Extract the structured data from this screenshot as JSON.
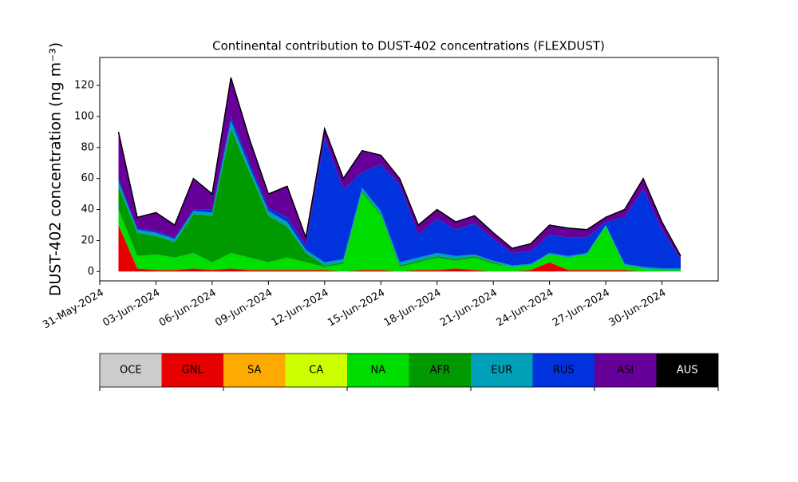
{
  "chart_data": {
    "type": "stacked_area",
    "title": "Continental contribution to DUST-402 concentrations (FLEXDUST)",
    "ylabel": "DUST-402 concentration (ng m⁻³)",
    "x": [
      "2024-06-01",
      "2024-06-02",
      "2024-06-03",
      "2024-06-04",
      "2024-06-05",
      "2024-06-06",
      "2024-06-07",
      "2024-06-08",
      "2024-06-09",
      "2024-06-10",
      "2024-06-11",
      "2024-06-12",
      "2024-06-13",
      "2024-06-14",
      "2024-06-15",
      "2024-06-16",
      "2024-06-17",
      "2024-06-18",
      "2024-06-19",
      "2024-06-20",
      "2024-06-21",
      "2024-06-22",
      "2024-06-23",
      "2024-06-24",
      "2024-06-25",
      "2024-06-26",
      "2024-06-27",
      "2024-06-28",
      "2024-06-29",
      "2024-06-30",
      "2024-07-01"
    ],
    "xlim": [
      "2024-05-31",
      "2024-07-03"
    ],
    "xticks": [
      {
        "value": "2024-05-31",
        "label": "31-May-2024"
      },
      {
        "value": "2024-06-03",
        "label": "03-Jun-2024"
      },
      {
        "value": "2024-06-06",
        "label": "06-Jun-2024"
      },
      {
        "value": "2024-06-09",
        "label": "09-Jun-2024"
      },
      {
        "value": "2024-06-12",
        "label": "12-Jun-2024"
      },
      {
        "value": "2024-06-15",
        "label": "15-Jun-2024"
      },
      {
        "value": "2024-06-18",
        "label": "18-Jun-2024"
      },
      {
        "value": "2024-06-21",
        "label": "21-Jun-2024"
      },
      {
        "value": "2024-06-24",
        "label": "24-Jun-2024"
      },
      {
        "value": "2024-06-27",
        "label": "27-Jun-2024"
      },
      {
        "value": "2024-06-30",
        "label": "30-Jun-2024"
      }
    ],
    "ylim": [
      -6,
      138
    ],
    "yticks": [
      0,
      20,
      40,
      60,
      80,
      100,
      120
    ],
    "series": [
      {
        "name": "OCE",
        "color": "#cccccc",
        "values": [
          0,
          0,
          0,
          0,
          0,
          0,
          0,
          0,
          0,
          0,
          0,
          0,
          0,
          0,
          0,
          0,
          0,
          0,
          0,
          0,
          0,
          0,
          0,
          0,
          0,
          0,
          0,
          0,
          0,
          0,
          0
        ]
      },
      {
        "name": "GNL",
        "color": "#e60000",
        "values": [
          30,
          2,
          1,
          1,
          2,
          1,
          2,
          1,
          1,
          1,
          1,
          1,
          0,
          1,
          1,
          0,
          1,
          1,
          2,
          1,
          0,
          0,
          1,
          6,
          1,
          1,
          1,
          1,
          0,
          0,
          0
        ]
      },
      {
        "name": "SA",
        "color": "#ffaa00",
        "values": [
          0,
          0,
          0,
          0,
          0,
          0,
          0,
          0,
          0,
          0,
          0,
          0,
          0,
          0,
          0,
          0,
          0,
          0,
          0,
          0,
          0,
          0,
          0,
          0,
          0,
          0,
          0,
          0,
          0,
          0,
          0
        ]
      },
      {
        "name": "CA",
        "color": "#ccff00",
        "values": [
          0,
          0,
          0,
          0,
          0,
          0,
          0,
          0,
          0,
          0,
          0,
          0,
          0,
          0,
          0,
          0,
          0,
          0,
          0,
          0,
          0,
          0,
          0,
          0,
          0,
          0,
          0,
          0,
          0,
          0,
          0
        ]
      },
      {
        "name": "NA",
        "color": "#00dd00",
        "values": [
          10,
          8,
          10,
          8,
          10,
          5,
          10,
          8,
          5,
          8,
          5,
          2,
          5,
          50,
          35,
          3,
          5,
          8,
          5,
          8,
          5,
          3,
          3,
          5,
          8,
          10,
          28,
          3,
          2,
          1,
          1
        ]
      },
      {
        "name": "AFR",
        "color": "#009900",
        "values": [
          15,
          15,
          12,
          10,
          25,
          30,
          80,
          55,
          30,
          20,
          6,
          1,
          1,
          1,
          1,
          1,
          1,
          1,
          1,
          1,
          1,
          0,
          0,
          0,
          0,
          0,
          0,
          0,
          0,
          0,
          0
        ]
      },
      {
        "name": "EUR",
        "color": "#00a0b8",
        "values": [
          3,
          2,
          2,
          2,
          2,
          2,
          5,
          3,
          3,
          3,
          2,
          2,
          2,
          2,
          2,
          2,
          2,
          2,
          2,
          1,
          1,
          1,
          1,
          1,
          1,
          1,
          1,
          1,
          1,
          1,
          1
        ]
      },
      {
        "name": "RUS",
        "color": "#0033dd",
        "values": [
          2,
          1,
          1,
          1,
          1,
          2,
          3,
          3,
          2,
          3,
          3,
          80,
          45,
          10,
          30,
          50,
          15,
          22,
          17,
          20,
          14,
          8,
          8,
          12,
          12,
          10,
          2,
          30,
          50,
          25,
          6
        ]
      },
      {
        "name": "ASI",
        "color": "#660099",
        "values": [
          30,
          7,
          12,
          8,
          20,
          10,
          25,
          15,
          9,
          20,
          5,
          6,
          7,
          14,
          6,
          4,
          6,
          6,
          5,
          5,
          4,
          3,
          5,
          6,
          6,
          5,
          3,
          5,
          7,
          5,
          2
        ]
      },
      {
        "name": "AUS",
        "color": "#000000",
        "values": [
          0,
          0,
          0,
          0,
          0,
          0,
          0,
          0,
          0,
          0,
          0,
          0,
          0,
          0,
          0,
          0,
          0,
          0,
          0,
          0,
          0,
          0,
          0,
          0,
          0,
          0,
          0,
          0,
          0,
          0,
          0
        ]
      }
    ]
  }
}
